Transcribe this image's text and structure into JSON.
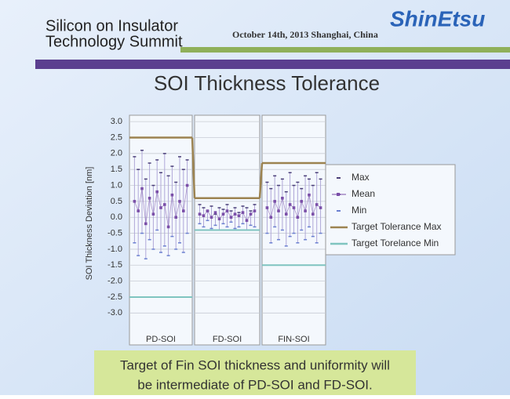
{
  "header": {
    "line1": "Silicon on Insulator",
    "line2": "Technology Summit",
    "date": "October 14th, 2013 Shanghai, China",
    "logo": "ShinEtsu"
  },
  "chart_data": {
    "type": "range",
    "title": "SOI Thickness Tolerance",
    "y_label": "SOI Thickness Deviation [nm]",
    "ylim": [
      -4,
      3.2
    ],
    "yticks": [
      {
        "value": 3,
        "label": "3.0"
      },
      2.5,
      {
        "value": 2,
        "label": "2.0"
      },
      1.5,
      {
        "value": 1,
        "label": "1.0"
      },
      0.5,
      {
        "value": 0,
        "label": "0.0"
      },
      -0.5,
      {
        "value": -1,
        "label": "-1.0"
      },
      -1.5,
      {
        "value": -2,
        "label": "-2.0"
      },
      -2.5,
      {
        "value": -3,
        "label": "-3.0"
      }
    ],
    "grid": true,
    "legend": [
      {
        "name": "Max",
        "color": "#4a3f78"
      },
      {
        "name": "Mean",
        "color": "#7b4fa8"
      },
      {
        "name": "Min",
        "color": "#6a7fd0"
      },
      {
        "name": "Target Tolerance Max",
        "color": "#9c8350"
      },
      {
        "name": "Target Torelance Min",
        "color": "#7fc4c0"
      }
    ],
    "panels": [
      {
        "label": "PD-SOI",
        "target_max": 2.5,
        "target_min": -2.5,
        "max": [
          1.9,
          1.5,
          2.1,
          1.2,
          1.7,
          1.0,
          1.8,
          1.4,
          2.0,
          1.3,
          1.6,
          1.1,
          1.9,
          1.5,
          1.8
        ],
        "mean": [
          0.5,
          0.2,
          0.9,
          -0.2,
          0.6,
          0.1,
          0.8,
          0.3,
          0.4,
          -0.3,
          0.7,
          0.0,
          0.5,
          0.2,
          1.0
        ],
        "min": [
          -0.8,
          -1.2,
          -0.5,
          -1.3,
          -0.7,
          -1.0,
          -0.4,
          -1.1,
          -0.9,
          -1.2,
          -0.6,
          -1.0,
          -0.8,
          -1.1,
          -0.5
        ]
      },
      {
        "label": "FD-SOI",
        "target_max": 0.6,
        "target_min": -0.4,
        "max": [
          0.4,
          0.3,
          0.2,
          0.35,
          0.1,
          0.3,
          0.25,
          0.4,
          0.2,
          0.3,
          0.15,
          0.35,
          0.3,
          0.2,
          0.4
        ],
        "mean": [
          0.1,
          0.05,
          0.2,
          0.0,
          0.15,
          -0.05,
          0.1,
          0.2,
          0.0,
          0.1,
          0.05,
          0.15,
          -0.1,
          0.1,
          0.2
        ],
        "min": [
          -0.2,
          -0.3,
          -0.1,
          -0.35,
          -0.25,
          -0.4,
          -0.2,
          -0.3,
          -0.15,
          -0.35,
          -0.3,
          -0.2,
          -0.4,
          -0.25,
          -0.3
        ]
      },
      {
        "label": "FIN-SOI",
        "target_max": 1.7,
        "target_min": -1.5,
        "max": [
          1.1,
          0.9,
          1.3,
          1.0,
          1.2,
          0.8,
          1.4,
          1.0,
          1.1,
          0.9,
          1.3,
          1.2,
          1.0,
          1.4,
          1.2
        ],
        "mean": [
          0.3,
          0.0,
          0.5,
          0.2,
          0.6,
          0.1,
          0.4,
          0.3,
          0.0,
          0.5,
          0.2,
          0.7,
          0.1,
          0.4,
          0.3
        ],
        "min": [
          -0.5,
          -0.8,
          -0.3,
          -0.7,
          -0.4,
          -0.9,
          -0.6,
          -0.5,
          -0.8,
          -0.4,
          -0.7,
          -0.3,
          -0.6,
          -0.8,
          -0.5
        ]
      }
    ]
  },
  "footer": {
    "line1": "Target of Fin SOI thickness and uniformity will",
    "line2": "be intermediate of PD-SOI and FD-SOI."
  }
}
